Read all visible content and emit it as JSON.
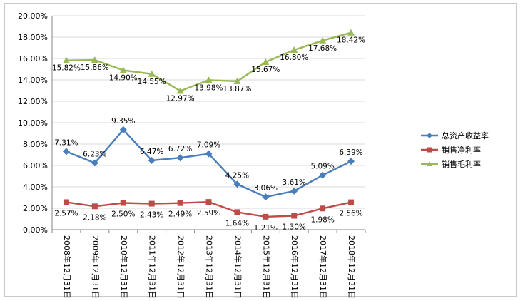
{
  "chart_data": {
    "type": "line",
    "title": "",
    "xlabel": "",
    "ylabel": "",
    "ylim": [
      0,
      20
    ],
    "y_ticks": [
      "0.00%",
      "2.00%",
      "4.00%",
      "6.00%",
      "8.00%",
      "10.00%",
      "12.00%",
      "14.00%",
      "16.00%",
      "18.00%",
      "20.00%"
    ],
    "grid": "horizontal",
    "legend_position": "right",
    "categories": [
      "2008年12月31日",
      "2009年12月31日",
      "2010年12月31日",
      "2011年12月31日",
      "2012年12月31日",
      "2013年12月31日",
      "2014年12月31日",
      "2015年12月31日",
      "2016年12月31日",
      "2017年12月31日",
      "2018年12月31日"
    ],
    "series": [
      {
        "name": "总资产收益率",
        "color": "#4a7ebb",
        "marker": "diamond",
        "values": [
          7.31,
          6.23,
          9.35,
          6.47,
          6.72,
          7.09,
          4.25,
          3.06,
          3.61,
          5.09,
          6.39
        ],
        "labels": [
          "7.31%",
          "6.23%",
          "9.35%",
          "6.47%",
          "6.72%",
          "7.09%",
          "4.25%",
          "3.06%",
          "3.61%",
          "5.09%",
          "6.39%"
        ]
      },
      {
        "name": "销售净利率",
        "color": "#be4b48",
        "marker": "square",
        "values": [
          2.57,
          2.18,
          2.5,
          2.43,
          2.49,
          2.59,
          1.64,
          1.21,
          1.3,
          1.98,
          2.56
        ],
        "labels": [
          "2.57%",
          "2.18%",
          "2.50%",
          "2.43%",
          "2.49%",
          "2.59%",
          "1.64%",
          "1.21%",
          "1.30%",
          "1.98%",
          "2.56%"
        ]
      },
      {
        "name": "销售毛利率",
        "color": "#98b954",
        "marker": "triangle",
        "values": [
          15.82,
          15.86,
          14.9,
          14.55,
          12.97,
          13.98,
          13.87,
          15.67,
          16.8,
          17.68,
          18.42
        ],
        "labels": [
          "15.82%",
          "15.86%",
          "14.90%",
          "14.55%",
          "12.97%",
          "13.98%",
          "13.87%",
          "15.67%",
          "16.80%",
          "17.68%",
          "18.42%"
        ]
      }
    ]
  }
}
